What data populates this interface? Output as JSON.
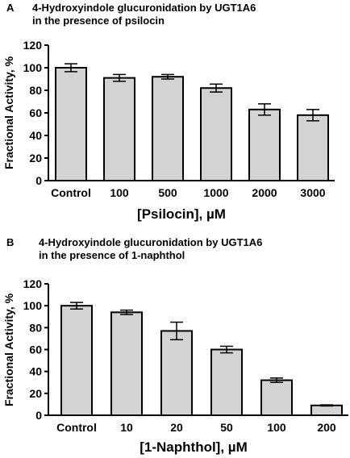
{
  "chart_data": [
    {
      "type": "bar",
      "panel_label": "A",
      "title_line1": "4-Hydroxyindole glucuronidation by UGT1A6",
      "title_line2": "in the presence of psilocin",
      "xlabel": "[Psilocin], µM",
      "ylabel": "Fractional Activity, %",
      "categories": [
        "Control",
        "100",
        "500",
        "1000",
        "2000",
        "3000"
      ],
      "values": [
        100,
        91,
        92,
        82,
        63,
        58
      ],
      "errors": [
        3.5,
        3,
        2,
        3.5,
        5,
        5
      ],
      "yticks": [
        "0",
        "20",
        "40",
        "60",
        "80",
        "100",
        "120"
      ],
      "ylim": [
        0,
        120
      ],
      "bar_color": "#d3d3d3",
      "grid": false
    },
    {
      "type": "bar",
      "panel_label": "B",
      "title_line1": "4-Hydroxyindole glucuronidation by UGT1A6",
      "title_line2": "in the presence of 1-naphthol",
      "xlabel": "[1-Naphthol], µM",
      "ylabel": "Fractional Activity, %",
      "categories": [
        "Control",
        "10",
        "20",
        "50",
        "100",
        "200"
      ],
      "values": [
        100,
        94,
        77,
        60,
        32,
        9
      ],
      "errors": [
        3,
        2,
        8,
        3,
        2,
        0.5
      ],
      "yticks": [
        "0",
        "20",
        "40",
        "60",
        "80",
        "100",
        "120"
      ],
      "ylim": [
        0,
        120
      ],
      "bar_color": "#d3d3d3",
      "grid": false
    }
  ]
}
